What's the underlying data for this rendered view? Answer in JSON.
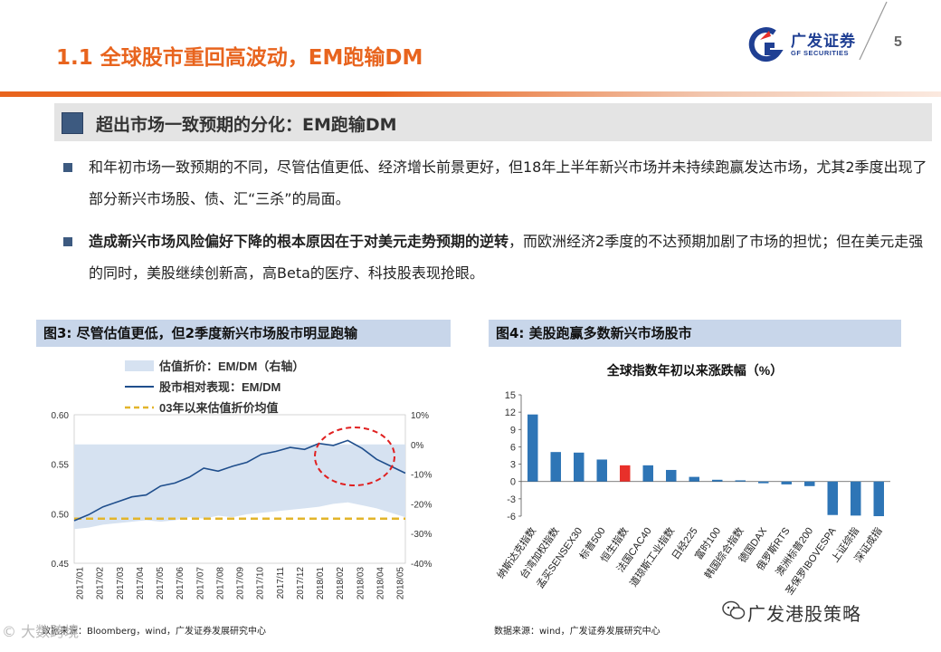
{
  "header": {
    "title": "1.1 全球股市重回高波动，EM跑输DM",
    "logo_cn": "广发证券",
    "logo_en": "GF SECURITIES",
    "page_number": "5"
  },
  "section": {
    "heading": "超出市场一致预期的分化：EM跑输DM"
  },
  "bullets": [
    {
      "text": "和年初市场一致预期的不同，尽管估值更低、经济增长前景更好，但18年上半年新兴市场并未持续跑赢发达市场，尤其2季度出现了部分新兴市场股、债、汇“三杀”的局面。"
    },
    {
      "bold": "造成新兴市场风险偏好下降的根本原因在于对美元走势预期的逆转",
      "text": "，而欧洲经济2季度的不达预期加剧了市场的担忧；但在美元走强的同时，美股继续创新高，高Beta的医疗、科技股表现抢眼。"
    }
  ],
  "figures": {
    "fig3": {
      "caption": "图3:  尽管估值更低，但2季度新兴市场股市明显跑输",
      "source": "数据来源：Bloomberg，wind，广发证券发展研究中心"
    },
    "fig4": {
      "caption": "图4:  美股跑赢多数新兴市场股市",
      "source": "数据来源：wind，广发证券发展研究中心"
    }
  },
  "watermark": {
    "text": "广发港股策略",
    "corner": "© 大数跨境"
  },
  "chart_data": [
    {
      "type": "line",
      "title": "",
      "legend": [
        "估值折价：EM/DM（右轴）",
        "股市相对表现：EM/DM",
        "03年以来估值折价均值"
      ],
      "legend_placement": "top-left",
      "x_ticks": [
        "2017/01",
        "2017/02",
        "2017/03",
        "2017/04",
        "2017/05",
        "2017/06",
        "2017/07",
        "2017/08",
        "2017/09",
        "2017/10",
        "2017/11",
        "2017/12",
        "2018/01",
        "2018/02",
        "2018/03",
        "2018/04",
        "2018/05"
      ],
      "y_left": {
        "ticks": [
          "0.45",
          "0.50",
          "0.55",
          "0.60"
        ],
        "range": [
          0.45,
          0.6
        ]
      },
      "y_right": {
        "ticks": [
          "10%",
          "0%",
          "-10%",
          "-20%",
          "-30%",
          "-40%"
        ],
        "range": [
          -40,
          10
        ]
      },
      "series": [
        {
          "name": "股市相对表现：EM/DM",
          "axis": "left",
          "values": [
            0.493,
            0.499,
            0.507,
            0.512,
            0.517,
            0.519,
            0.528,
            0.531,
            0.537,
            0.546,
            0.543,
            0.548,
            0.552,
            0.56,
            0.563,
            0.567,
            0.565,
            0.571,
            0.569,
            0.574,
            0.566,
            0.555,
            0.548,
            0.541
          ]
        },
        {
          "name": "估值折价：EM/DM（右轴）",
          "axis": "right",
          "kind": "area",
          "values": [
            -28.5,
            -28.0,
            -27.0,
            -26.5,
            -26.0,
            -25.5,
            -26.0,
            -25.5,
            -24.5,
            -25.0,
            -24.0,
            -24.5,
            -23.5,
            -23.0,
            -22.5,
            -22.0,
            -21.5,
            -21.0,
            -20.0,
            -19.5,
            -20.5,
            -21.5,
            -23.0,
            -24.5
          ]
        },
        {
          "name": "03年以来估值折价均值",
          "axis": "right",
          "kind": "dashed",
          "value": -25
        }
      ],
      "highlight": "red dashed ellipse over 2018/02–2018/05"
    },
    {
      "type": "bar",
      "title": "全球指数年初以来涨跌幅（%）",
      "categories": [
        "纳斯达克指数",
        "台湾加权指数",
        "孟买SENSEX30",
        "标普500",
        "恒生指数",
        "法国CAC40",
        "道琼斯工业指数",
        "日经225",
        "富时100",
        "韩国综合指数",
        "德国DAX",
        "俄罗斯RTS",
        "澳洲标普200",
        "圣保罗IBOVESPA",
        "上证综指",
        "深证成指"
      ],
      "values": [
        11.6,
        5.1,
        5.0,
        3.8,
        2.8,
        2.8,
        2.0,
        0.8,
        0.3,
        0.2,
        -0.3,
        -0.5,
        -0.8,
        -5.8,
        -5.9,
        -6.0
      ],
      "highlight_category": "恒生指数",
      "colors": {
        "bar": "#2e75b6",
        "highlight": "#e8302a"
      },
      "y_ticks": [
        15,
        12,
        9,
        6,
        3,
        0,
        -3,
        -6
      ],
      "ylim": [
        -6,
        15
      ]
    }
  ]
}
